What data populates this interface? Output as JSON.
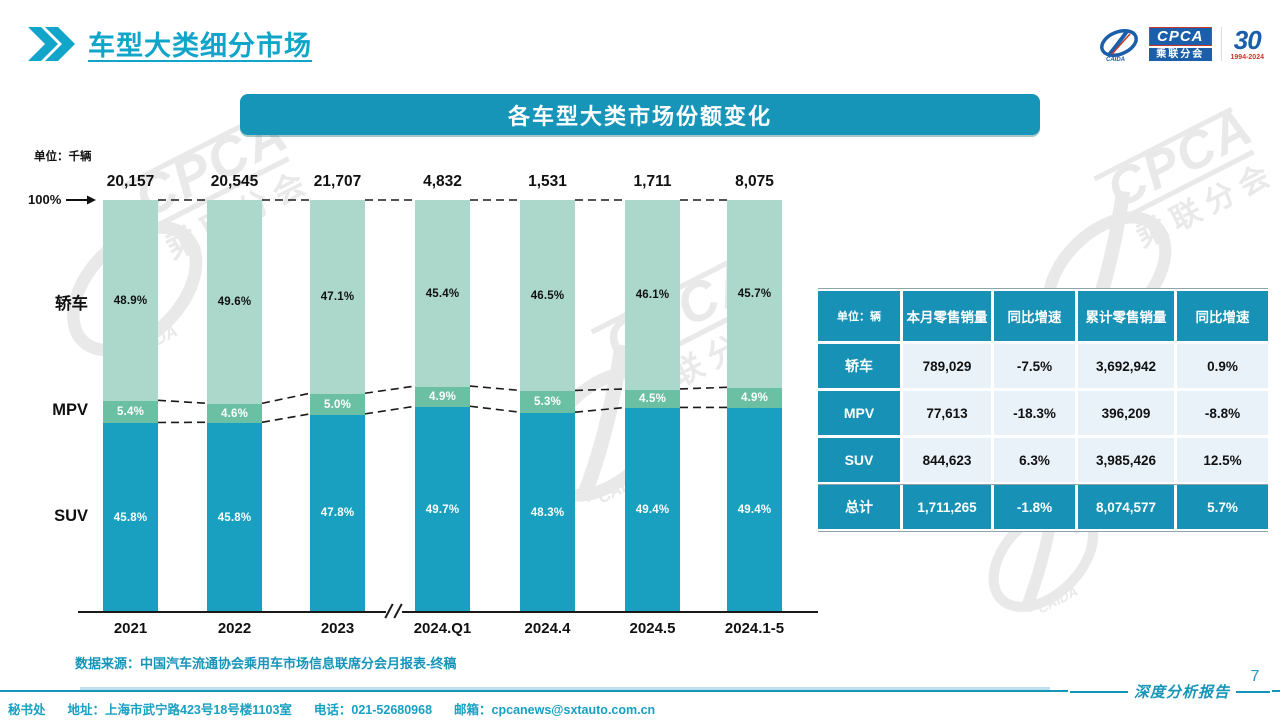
{
  "page": {
    "title": "车型大类细分市场",
    "page_number": "7",
    "report_type_label": "深度分析报告",
    "source": "数据来源：中国汽车流通协会乘用车市场信息联席分会月报表-终稿",
    "footer_items": [
      "秘书处",
      "地址：上海市武宁路423号18号楼1103室",
      "电话：021-52680968",
      "邮箱：cpcanews@sxtauto.com.cn"
    ]
  },
  "logo": {
    "cpca": "CPCA",
    "cpca_sub": "乘联分会",
    "anniversary": "30",
    "anniversary_years": "1994-2024"
  },
  "chart_banner": "各车型大类市场份额变化",
  "colors": {
    "accent_teal": "#1695B9",
    "suv_bar": "#199FC0",
    "mpv_bar": "#6BC0A3",
    "sedan_bar": "#ACD8CC",
    "table_header": "#1791B5",
    "table_cell_bg": "#EAF2F9",
    "title_cyan": "#10A5C9"
  },
  "chart_data": {
    "type": "bar",
    "stacked": true,
    "unit_label": "单位：千辆",
    "axis_top_label": "100%",
    "categories": [
      "2021",
      "2022",
      "2023",
      "2024.Q1",
      "2024.4",
      "2024.5",
      "2024.1-5"
    ],
    "totals": [
      "20,157",
      "20,545",
      "21,707",
      "4,832",
      "1,531",
      "1,711",
      "8,075"
    ],
    "series": [
      {
        "name": "轿车",
        "color": "#ACD8CC",
        "label_color": "#111111",
        "values": [
          48.9,
          49.6,
          47.1,
          45.4,
          46.5,
          46.1,
          45.7
        ]
      },
      {
        "name": "MPV",
        "color": "#6BC0A3",
        "label_color": "#ffffff",
        "values": [
          5.4,
          4.6,
          5.0,
          4.9,
          5.3,
          4.5,
          4.9
        ]
      },
      {
        "name": "SUV",
        "color": "#199FC0",
        "label_color": "#ffffff",
        "values": [
          45.8,
          45.8,
          47.8,
          49.7,
          48.3,
          49.4,
          49.4
        ]
      }
    ],
    "axis_break_after_index": 2,
    "ylim": [
      0,
      100
    ],
    "grid": false,
    "legend_position": "left-category-labels"
  },
  "table": {
    "headers": [
      "单位：辆",
      "本月零售销量",
      "同比增速",
      "累计零售销量",
      "同比增速"
    ],
    "rows": [
      {
        "label": "轿车",
        "cells": [
          "789,029",
          "-7.5%",
          "3,692,942",
          "0.9%"
        ],
        "is_total": false
      },
      {
        "label": "MPV",
        "cells": [
          "77,613",
          "-18.3%",
          "396,209",
          "-8.8%"
        ],
        "is_total": false
      },
      {
        "label": "SUV",
        "cells": [
          "844,623",
          "6.3%",
          "3,985,426",
          "12.5%"
        ],
        "is_total": false
      },
      {
        "label": "总计",
        "cells": [
          "1,711,265",
          "-1.8%",
          "8,074,577",
          "5.7%"
        ],
        "is_total": true
      }
    ]
  },
  "watermark": {
    "cpca": "CPCA",
    "sub": "乘联分会",
    "small": "CAIDA"
  }
}
